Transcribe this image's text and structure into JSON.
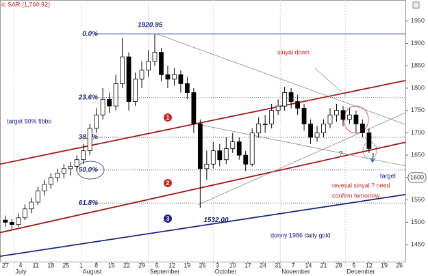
{
  "chart_data": {
    "type": "candlestick",
    "title": "ic SAR (1,760.92)",
    "x": [
      0,
      3,
      6,
      9,
      12,
      15,
      18,
      21,
      24,
      27,
      30,
      33,
      36,
      39,
      42,
      45,
      48,
      51,
      54,
      57,
      60,
      63,
      66,
      69,
      72,
      75,
      78,
      81,
      84,
      87,
      90,
      93,
      96,
      99,
      102,
      105,
      108,
      111,
      114,
      117,
      120,
      123,
      126,
      129,
      132,
      135,
      138,
      141,
      144,
      147,
      150,
      153,
      156,
      159,
      162,
      165,
      168
    ],
    "open": [
      1505,
      1500,
      1495,
      1510,
      1530,
      1545,
      1570,
      1585,
      1600,
      1610,
      1620,
      1625,
      1640,
      1660,
      1710,
      1740,
      1775,
      1760,
      1810,
      1870,
      1770,
      1820,
      1840,
      1860,
      1880,
      1830,
      1820,
      1830,
      1810,
      1790,
      1720,
      1620,
      1630,
      1660,
      1640,
      1665,
      1680,
      1650,
      1630,
      1700,
      1720,
      1720,
      1750,
      1760,
      1790,
      1770,
      1755,
      1720,
      1690,
      1700,
      1720,
      1740,
      1750,
      1730,
      1740,
      1720,
      1700
    ],
    "high": [
      1515,
      1508,
      1520,
      1540,
      1555,
      1580,
      1595,
      1610,
      1620,
      1630,
      1635,
      1650,
      1675,
      1720,
      1755,
      1800,
      1790,
      1830,
      1912,
      1880,
      1835,
      1860,
      1885,
      1921,
      1890,
      1850,
      1845,
      1840,
      1825,
      1800,
      1730,
      1660,
      1680,
      1675,
      1690,
      1700,
      1690,
      1660,
      1710,
      1735,
      1740,
      1765,
      1775,
      1803,
      1800,
      1785,
      1765,
      1730,
      1715,
      1730,
      1755,
      1765,
      1760,
      1755,
      1750,
      1730,
      1710
    ],
    "low": [
      1490,
      1485,
      1490,
      1505,
      1520,
      1538,
      1560,
      1575,
      1590,
      1598,
      1605,
      1615,
      1630,
      1650,
      1700,
      1730,
      1745,
      1750,
      1800,
      1750,
      1760,
      1800,
      1825,
      1850,
      1815,
      1800,
      1805,
      1790,
      1775,
      1700,
      1532,
      1595,
      1620,
      1625,
      1630,
      1655,
      1640,
      1615,
      1625,
      1690,
      1700,
      1710,
      1740,
      1750,
      1755,
      1740,
      1705,
      1675,
      1680,
      1690,
      1710,
      1725,
      1715,
      1720,
      1700,
      1690,
      1655
    ],
    "close": [
      1500,
      1495,
      1510,
      1530,
      1545,
      1570,
      1585,
      1600,
      1610,
      1620,
      1625,
      1640,
      1660,
      1710,
      1740,
      1775,
      1760,
      1810,
      1870,
      1770,
      1820,
      1840,
      1860,
      1880,
      1830,
      1820,
      1830,
      1810,
      1790,
      1720,
      1620,
      1630,
      1660,
      1640,
      1665,
      1680,
      1650,
      1630,
      1700,
      1720,
      1720,
      1750,
      1760,
      1790,
      1770,
      1755,
      1720,
      1690,
      1700,
      1720,
      1740,
      1750,
      1730,
      1740,
      1720,
      1700,
      1665
    ],
    "xlim": [
      -2.5,
      184.8
    ],
    "ylim": [
      1412,
      1997
    ],
    "yticks": [
      1450,
      1500,
      1550,
      1600,
      1650,
      1700,
      1750,
      1800,
      1850,
      1900,
      1950
    ],
    "xticks": [
      {
        "value": 0,
        "label": "27"
      },
      {
        "value": 7,
        "label": "4"
      },
      {
        "value": 14,
        "label": "11"
      },
      {
        "value": 21,
        "label": "18"
      },
      {
        "value": 28,
        "label": "25"
      },
      {
        "value": 35,
        "label": "1"
      },
      {
        "value": 42,
        "label": "8"
      },
      {
        "value": 49,
        "label": "15"
      },
      {
        "value": 56,
        "label": "22"
      },
      {
        "value": 63,
        "label": "29"
      },
      {
        "value": 70,
        "label": "5"
      },
      {
        "value": 77,
        "label": "12"
      },
      {
        "value": 84,
        "label": "19"
      },
      {
        "value": 91,
        "label": "26"
      },
      {
        "value": 98,
        "label": "3"
      },
      {
        "value": 105,
        "label": "10"
      },
      {
        "value": 112,
        "label": "17"
      },
      {
        "value": 119,
        "label": "24"
      },
      {
        "value": 126,
        "label": "31"
      },
      {
        "value": 133,
        "label": "7"
      },
      {
        "value": 140,
        "label": "14"
      },
      {
        "value": 147,
        "label": "21"
      },
      {
        "value": 154,
        "label": "28"
      },
      {
        "value": 161,
        "label": "5"
      },
      {
        "value": 168,
        "label": "12"
      },
      {
        "value": 175,
        "label": "19"
      },
      {
        "value": 182,
        "label": "26"
      }
    ],
    "months": [
      {
        "value": 4,
        "label": "July"
      },
      {
        "value": 35,
        "label": "August"
      },
      {
        "value": 66,
        "label": "September"
      },
      {
        "value": 96,
        "label": "October"
      },
      {
        "value": 127,
        "label": "November"
      },
      {
        "value": 157,
        "label": "December"
      }
    ],
    "fib_levels": [
      {
        "value": 1920.95,
        "label": "0.0%"
      },
      {
        "value": 1779,
        "label": "23.6%"
      },
      {
        "value": 1690,
        "label": "38.2%"
      },
      {
        "value": 1617,
        "label": "50.0%"
      },
      {
        "value": 1543,
        "label": "61.8%"
      }
    ],
    "high_label": {
      "value": 1920.95,
      "label": "1920.95"
    },
    "low_label": {
      "value": 1532,
      "label": "1532.00"
    },
    "price_marker": 1600,
    "trend_lines": [
      {
        "color": "#a31515",
        "points": [
          [
            -2.5,
            1630
          ],
          [
            184.8,
            1817
          ]
        ]
      },
      {
        "color": "#a31515",
        "points": [
          [
            -2.5,
            1477
          ],
          [
            184.8,
            1679
          ]
        ]
      },
      {
        "color": "#1a237e",
        "points": [
          [
            -2.5,
            1424
          ],
          [
            184.8,
            1562
          ]
        ]
      },
      {
        "color": "#888888",
        "points": [
          [
            70,
            1921
          ],
          [
            184.8,
            1719
          ]
        ]
      },
      {
        "color": "#888888",
        "points": [
          [
            89,
            1719
          ],
          [
            184.8,
            1626
          ]
        ]
      },
      {
        "color": "#888888",
        "points": [
          [
            89,
            1539
          ],
          [
            184.8,
            1745
          ]
        ]
      }
    ],
    "annotations": [
      "sinyal down",
      "target 50% fibbo",
      "target",
      "revesal sinyal ? need",
      "confirm tomorrow",
      "donny 1986 daily gold",
      "?"
    ],
    "markers": [
      "1",
      "2",
      "3"
    ],
    "up_color": "#ffffff",
    "down_color": "#000000"
  }
}
